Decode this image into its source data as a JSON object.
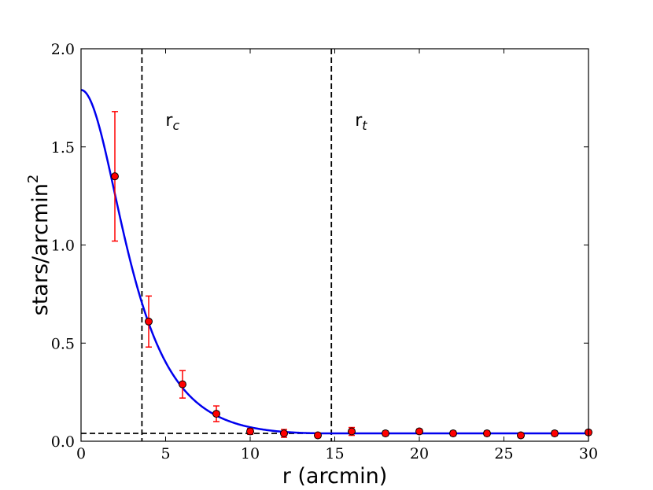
{
  "chart_data": {
    "type": "scatter",
    "xlabel": "r (arcmin)",
    "ylabel_base": "stars/arcmin",
    "ylabel_sup": "2",
    "xlim": [
      0,
      30
    ],
    "ylim": [
      0,
      2
    ],
    "xticks": [
      0,
      5,
      10,
      15,
      20,
      25,
      30
    ],
    "xtick_labels": [
      "0",
      "5",
      "10",
      "15",
      "20",
      "25",
      "30"
    ],
    "yticks": [
      0,
      0.5,
      1,
      1.5,
      2
    ],
    "ytick_labels": [
      "0.0",
      "0.5",
      "1.0",
      "1.5",
      "2.0"
    ],
    "grid": false,
    "points": [
      {
        "x": 2,
        "y": 1.35,
        "err": 0.33
      },
      {
        "x": 4,
        "y": 0.61,
        "err": 0.13
      },
      {
        "x": 6,
        "y": 0.29,
        "err": 0.07
      },
      {
        "x": 8,
        "y": 0.14,
        "err": 0.04
      },
      {
        "x": 10,
        "y": 0.05,
        "err": 0.015
      },
      {
        "x": 12,
        "y": 0.04,
        "err": 0.02
      },
      {
        "x": 14,
        "y": 0.03,
        "err": 0.012
      },
      {
        "x": 16,
        "y": 0.05,
        "err": 0.02
      },
      {
        "x": 18,
        "y": 0.04,
        "err": 0.012
      },
      {
        "x": 20,
        "y": 0.05,
        "err": 0.012
      },
      {
        "x": 22,
        "y": 0.04,
        "err": 0.012
      },
      {
        "x": 24,
        "y": 0.04,
        "err": 0.012
      },
      {
        "x": 26,
        "y": 0.03,
        "err": 0.012
      },
      {
        "x": 28,
        "y": 0.04,
        "err": 0.012
      },
      {
        "x": 30,
        "y": 0.045,
        "err": 0.012
      }
    ],
    "fit_curve": {
      "f0": 1.75,
      "background": 0.04,
      "r_core": 3.6,
      "r_tidal": 14.8,
      "color": "#0000ee"
    },
    "reference_lines": {
      "vertical": [
        {
          "x": 3.6,
          "label_base": "r",
          "label_sub": "c"
        },
        {
          "x": 14.8,
          "label_base": "r",
          "label_sub": "t"
        }
      ],
      "horizontal": [
        {
          "y": 0.04
        }
      ]
    },
    "colors": {
      "marker_fill": "#ff0000",
      "marker_edge": "#000000",
      "errorbar": "#ff0000",
      "curve": "#0000ee",
      "reference": "#000000"
    }
  }
}
